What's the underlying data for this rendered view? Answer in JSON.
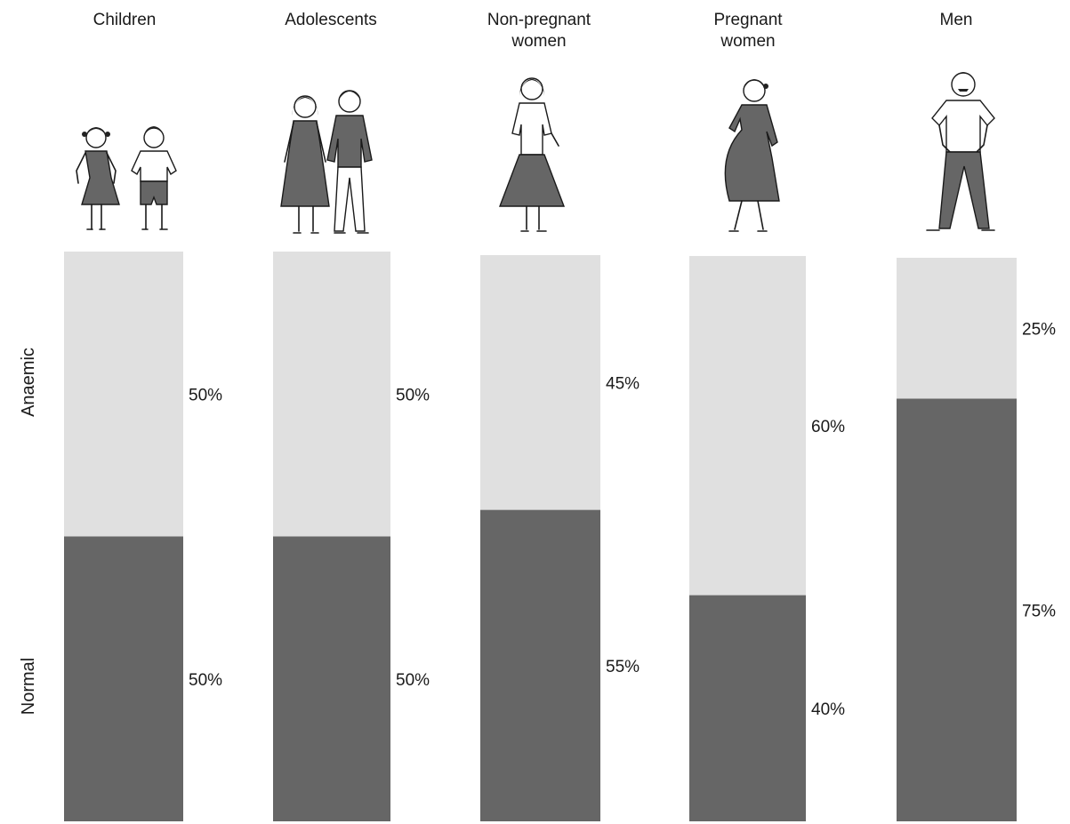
{
  "chart_data": {
    "type": "bar",
    "stacked": true,
    "categories": [
      "Children",
      "Adolescents",
      "Non-pregnant\nwomen",
      "Pregnant\nwomen",
      "Men"
    ],
    "series": [
      {
        "name": "Anaemic",
        "values": [
          50,
          50,
          45,
          60,
          25
        ],
        "labels": [
          "50%",
          "50%",
          "45%",
          "60%",
          "25%"
        ],
        "color": "#e0e0e0"
      },
      {
        "name": "Normal",
        "values": [
          50,
          50,
          55,
          40,
          75
        ],
        "labels": [
          "50%",
          "50%",
          "55%",
          "40%",
          "75%"
        ],
        "color": "#666666"
      }
    ],
    "ylim": [
      0,
      100
    ],
    "grid": false,
    "legend": "none",
    "illustrations": [
      "girl-and-boy-icon",
      "adolescent-girl-and-boy-icon",
      "woman-icon",
      "pregnant-woman-icon",
      "man-icon"
    ]
  }
}
